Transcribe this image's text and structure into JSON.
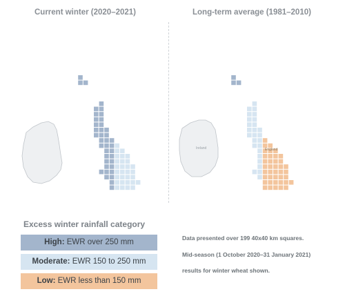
{
  "titles": {
    "left": "Current winter (2020–2021)",
    "right": "Long-term average (1981–2010)"
  },
  "map_labels": {
    "ireland": "Ireland",
    "country_east": "England"
  },
  "legend": {
    "title": "Excess winter rainfall category",
    "items": [
      {
        "strong": "High:",
        "text": " EWR over 250 mm",
        "color": "#a3b5cc"
      },
      {
        "strong": "Moderate:",
        "text": " EWR 150 to 250 mm",
        "color": "#d6e5f1"
      },
      {
        "strong": "Low:",
        "text": " EWR less than 150 mm",
        "color": "#f3c59d"
      }
    ]
  },
  "notes": [
    "Data presented over 199 40x40 km squares.",
    "Mid-season (1 October 2020–31 January 2021)",
    "results for winter wheat shown."
  ],
  "colors": {
    "high": "#a3b5cc",
    "moderate": "#d6e5f1",
    "low": "#f3c59d",
    "land": "#e9ebed",
    "title_gray": "#8a8f95"
  }
}
